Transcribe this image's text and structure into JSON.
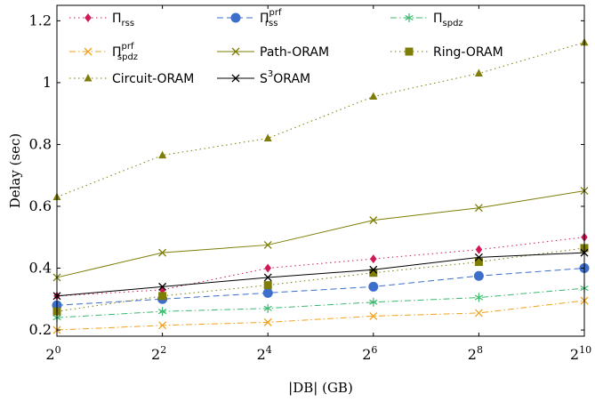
{
  "chart_data": {
    "type": "line",
    "xlabel": "|DB| (GB)",
    "ylabel": "Delay (sec)",
    "x_exponents": [
      0,
      2,
      4,
      6,
      8,
      10
    ],
    "x_tick_base": "2",
    "x_tick_exponents": [
      "0",
      "2",
      "4",
      "6",
      "8",
      "10"
    ],
    "ylim": [
      0.18,
      1.25
    ],
    "y_ticks": [
      0.2,
      0.4,
      0.6,
      0.8,
      1.0,
      1.2
    ],
    "y_tick_labels": [
      "0.2",
      "0.4",
      "0.6",
      "0.8",
      "1",
      "1.2"
    ],
    "grid": false,
    "legend_position": "top-left",
    "series": [
      {
        "key": "rss",
        "legend_main": "Π",
        "legend_sub": "rss",
        "legend_sup": "",
        "values": [
          0.31,
          0.33,
          0.4,
          0.43,
          0.46,
          0.5
        ],
        "color": "#d1195a",
        "dash": "1.5,3.5",
        "marker": "diamond"
      },
      {
        "key": "rss-prf",
        "legend_main": "Π",
        "legend_sub": "rss",
        "legend_sup": "prf",
        "values": [
          0.28,
          0.3,
          0.32,
          0.34,
          0.375,
          0.4
        ],
        "color": "#3d6ecb",
        "dash": "7,4",
        "marker": "circle"
      },
      {
        "key": "spdz",
        "legend_main": "Π",
        "legend_sub": "spdz",
        "legend_sup": "",
        "values": [
          0.24,
          0.26,
          0.27,
          0.29,
          0.305,
          0.335
        ],
        "color": "#3cb96e",
        "dash": "7,3,1.5,3",
        "marker": "star"
      },
      {
        "key": "spdz-prf",
        "legend_main": "Π",
        "legend_sub": "spdz",
        "legend_sup": "prf",
        "values": [
          0.2,
          0.215,
          0.225,
          0.245,
          0.255,
          0.295
        ],
        "color": "#f2a11c",
        "dash": "7,3,1.5,3",
        "marker": "x"
      },
      {
        "key": "path-oram",
        "legend_main": "Path-ORAM",
        "legend_sub": "",
        "legend_sup": "",
        "values": [
          0.37,
          0.45,
          0.475,
          0.555,
          0.595,
          0.65
        ],
        "color": "#7d7d07",
        "dash": "",
        "marker": "x"
      },
      {
        "key": "ring-oram",
        "legend_main": "Ring-ORAM",
        "legend_sub": "",
        "legend_sup": "",
        "values": [
          0.26,
          0.31,
          0.345,
          0.385,
          0.42,
          0.465
        ],
        "color": "#7d7d07",
        "dash": "1.5,3.5",
        "marker": "square"
      },
      {
        "key": "circuit-oram",
        "legend_main": "Circuit-ORAM",
        "legend_sub": "",
        "legend_sup": "",
        "values": [
          0.63,
          0.765,
          0.82,
          0.955,
          1.03,
          1.13
        ],
        "color": "#7d7d07",
        "dash": "1.5,3.5",
        "marker": "triangle"
      },
      {
        "key": "s3oram",
        "legend_main": "S",
        "legend_sub": "",
        "legend_sup": "3",
        "legend_tail": "ORAM",
        "values": [
          0.31,
          0.34,
          0.37,
          0.395,
          0.435,
          0.45
        ],
        "color": "#000000",
        "dash": "",
        "marker": "x"
      }
    ]
  }
}
